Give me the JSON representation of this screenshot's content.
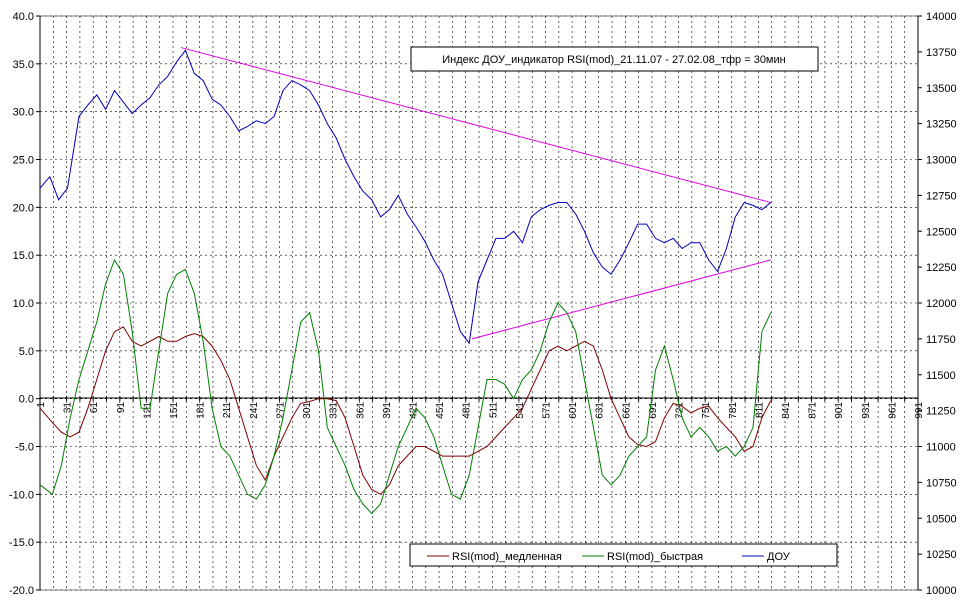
{
  "chart_data": {
    "type": "line",
    "title": "Индекс ДОУ_индикатор RSI(mod)_21.11.07 - 27.02.08_тфр = 30мин",
    "xlabel": "",
    "ylabel": "",
    "xlim": [
      1,
      991
    ],
    "ylim": [
      -20,
      40
    ],
    "y2lim": [
      10000,
      14000
    ],
    "grid": true,
    "legend_position": "bottom-right",
    "y_ticks": [
      "40.0",
      "35.0",
      "30.0",
      "25.0",
      "20.0",
      "15.0",
      "10.0",
      "5.0",
      "0.0",
      "-5.0",
      "-10.0",
      "-15.0",
      "-20.0"
    ],
    "y2_ticks": [
      "14000",
      "13750",
      "13500",
      "13250",
      "13000",
      "12750",
      "12500",
      "12250",
      "12000",
      "11750",
      "11500",
      "11250",
      "11000",
      "10750",
      "10500",
      "10250",
      "10000"
    ],
    "x_ticks": [
      "1",
      "31",
      "61",
      "91",
      "121",
      "151",
      "181",
      "211",
      "241",
      "271",
      "301",
      "331",
      "361",
      "391",
      "421",
      "451",
      "481",
      "511",
      "541",
      "571",
      "601",
      "631",
      "661",
      "691",
      "721",
      "751",
      "781",
      "811",
      "841",
      "871",
      "901",
      "931",
      "961",
      "991"
    ],
    "series": [
      {
        "name": "RSI(mod)_медленная",
        "color": "#800000",
        "axis": "left",
        "x": [
          1,
          15,
          25,
          35,
          45,
          55,
          65,
          75,
          85,
          95,
          105,
          115,
          125,
          135,
          145,
          155,
          165,
          175,
          185,
          195,
          205,
          215,
          225,
          235,
          245,
          255,
          265,
          275,
          285,
          295,
          305,
          315,
          325,
          335,
          345,
          355,
          365,
          375,
          385,
          395,
          405,
          415,
          425,
          435,
          445,
          455,
          465,
          475,
          485,
          495,
          505,
          515,
          525,
          535,
          545,
          555,
          565,
          575,
          585,
          595,
          605,
          615,
          625,
          635,
          645,
          655,
          665,
          675,
          685,
          695,
          705,
          715,
          725,
          735,
          745,
          755,
          765,
          775,
          785,
          795,
          805,
          815,
          825
        ],
        "values": [
          -1,
          -2.5,
          -3.5,
          -4,
          -3.5,
          -1,
          2,
          5,
          7,
          7.5,
          6,
          5.5,
          6,
          6.5,
          6,
          6,
          6.5,
          6.8,
          6.5,
          5.5,
          4,
          2,
          -1,
          -4,
          -7,
          -8.5,
          -6,
          -4,
          -2,
          -0.5,
          -0.3,
          0,
          0,
          -0.2,
          -2,
          -5,
          -8,
          -9.5,
          -10,
          -9,
          -7,
          -6,
          -5,
          -5,
          -5.5,
          -6,
          -6,
          -6,
          -6,
          -5.5,
          -5,
          -4,
          -3,
          -2,
          -1,
          1,
          3,
          5,
          5.5,
          5,
          5.5,
          6,
          5.5,
          3,
          0,
          -2,
          -4,
          -4.8,
          -5,
          -4.5,
          -2,
          -0.5,
          -0.8,
          -1.5,
          -1,
          -0.8,
          -2,
          -3,
          -4,
          -5.5,
          -5,
          -2,
          -0.2
        ]
      },
      {
        "name": "RSI(mod)_быстрая",
        "color": "#008000",
        "axis": "left",
        "x": [
          1,
          15,
          25,
          35,
          45,
          55,
          65,
          75,
          85,
          95,
          105,
          115,
          125,
          135,
          145,
          155,
          165,
          175,
          185,
          195,
          205,
          215,
          225,
          235,
          245,
          255,
          265,
          275,
          285,
          295,
          305,
          315,
          325,
          335,
          345,
          355,
          365,
          375,
          385,
          395,
          405,
          415,
          425,
          435,
          445,
          455,
          465,
          475,
          485,
          495,
          505,
          515,
          525,
          535,
          545,
          555,
          565,
          575,
          585,
          595,
          605,
          615,
          625,
          635,
          645,
          655,
          665,
          675,
          685,
          695,
          705,
          715,
          725,
          735,
          745,
          755,
          765,
          775,
          785,
          795,
          805,
          815,
          825
        ],
        "values": [
          -9,
          -10,
          -7,
          -2,
          2,
          5,
          8,
          12,
          14.5,
          13,
          7,
          -1,
          -1,
          5,
          11,
          13,
          13.5,
          11,
          6,
          -1,
          -5,
          -6,
          -8,
          -10,
          -10.5,
          -9,
          -6,
          -2,
          3,
          8,
          9,
          5,
          -3,
          -5,
          -7,
          -9.5,
          -11,
          -12,
          -11,
          -8,
          -5,
          -3,
          -1,
          -2,
          -4,
          -7,
          -10,
          -10.5,
          -8,
          -3,
          2,
          2,
          1.5,
          0,
          2,
          3,
          5,
          8,
          10,
          9,
          7,
          2,
          -3,
          -8,
          -9,
          -8,
          -6,
          -5,
          -4,
          3,
          5.5,
          2,
          -2,
          -4,
          -3,
          -4,
          -5.5,
          -5,
          -6,
          -5,
          -3,
          7,
          9
        ]
      },
      {
        "name": "ДОУ",
        "color": "#0000c0",
        "axis": "right",
        "x": [
          1,
          12,
          22,
          32,
          45,
          55,
          65,
          75,
          85,
          95,
          105,
          115,
          125,
          135,
          145,
          155,
          165,
          175,
          185,
          195,
          205,
          215,
          225,
          235,
          245,
          255,
          265,
          275,
          285,
          295,
          305,
          315,
          325,
          335,
          345,
          355,
          365,
          375,
          385,
          395,
          405,
          415,
          425,
          435,
          445,
          455,
          465,
          475,
          485,
          495,
          505,
          515,
          525,
          535,
          545,
          555,
          565,
          575,
          585,
          595,
          605,
          615,
          625,
          635,
          645,
          655,
          665,
          675,
          685,
          695,
          705,
          715,
          725,
          735,
          745,
          755,
          765,
          775,
          785,
          795,
          805,
          815,
          825
        ],
        "values": [
          12800,
          12880,
          12720,
          12800,
          13300,
          13380,
          13450,
          13350,
          13480,
          13400,
          13320,
          13380,
          13430,
          13520,
          13580,
          13680,
          13760,
          13600,
          13550,
          13420,
          13380,
          13300,
          13200,
          13230,
          13270,
          13250,
          13300,
          13480,
          13550,
          13520,
          13480,
          13380,
          13250,
          13150,
          13000,
          12880,
          12780,
          12720,
          12600,
          12650,
          12750,
          12620,
          12530,
          12430,
          12300,
          12200,
          12000,
          11800,
          11720,
          12150,
          12300,
          12450,
          12450,
          12500,
          12420,
          12600,
          12650,
          12680,
          12700,
          12700,
          12620,
          12500,
          12350,
          12250,
          12200,
          12300,
          12420,
          12550,
          12550,
          12450,
          12420,
          12450,
          12380,
          12420,
          12420,
          12300,
          12220,
          12380,
          12600,
          12700,
          12680,
          12650,
          12700
        ]
      }
    ],
    "trendlines": [
      {
        "name": "upper",
        "color": "#e000e0",
        "x": [
          160,
          825
        ],
        "values": [
          13780,
          12700
        ]
      },
      {
        "name": "lower",
        "color": "#e000e0",
        "x": [
          488,
          825
        ],
        "values": [
          11750,
          12300
        ]
      }
    ]
  }
}
